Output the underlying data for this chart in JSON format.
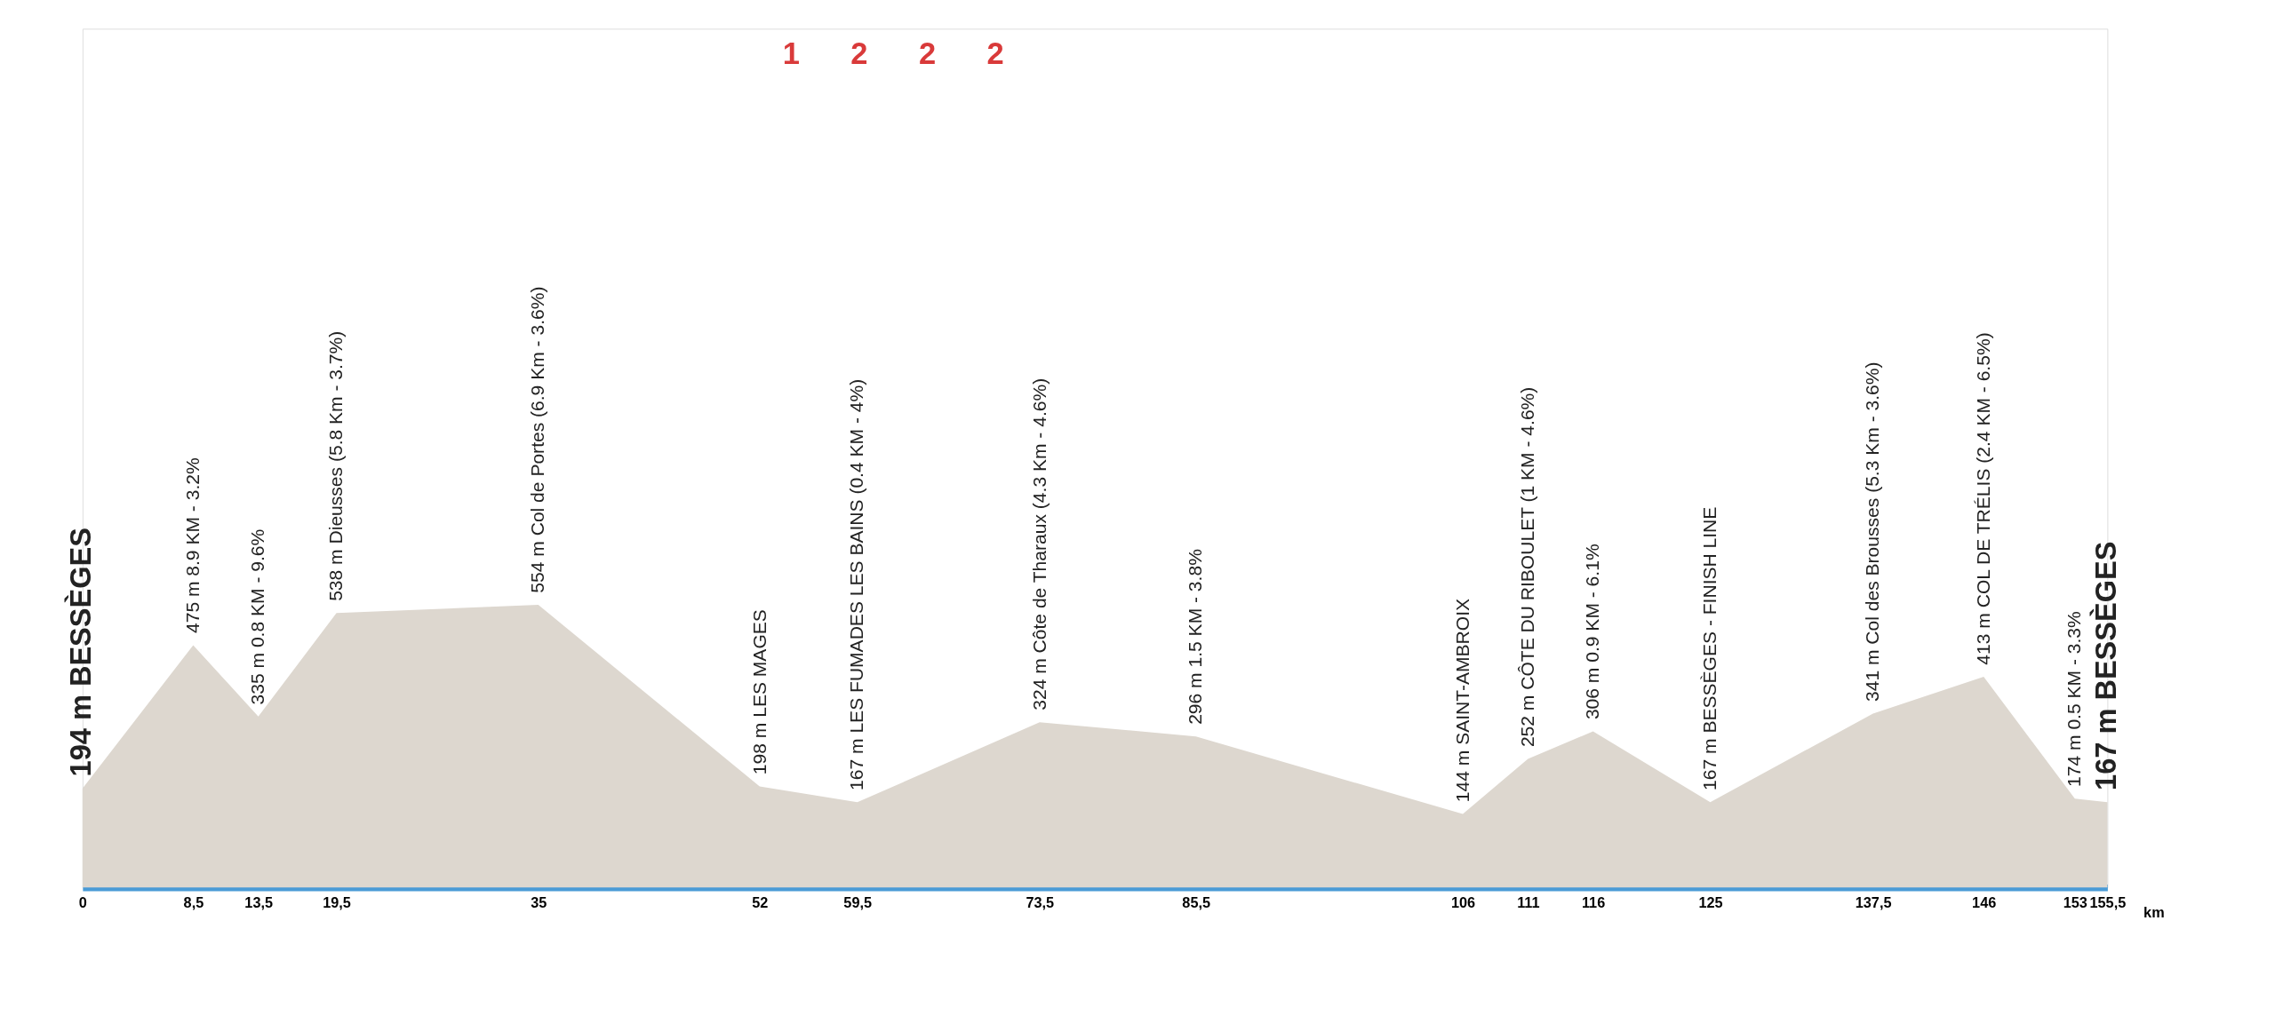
{
  "chart_data": {
    "type": "area",
    "x": [
      0,
      8.5,
      13.5,
      19.5,
      35,
      52,
      59.5,
      73.5,
      85.5,
      106,
      111,
      116,
      125,
      137.5,
      146,
      153,
      155.5
    ],
    "series": [
      {
        "color": "#ddd7cf",
        "values": [
          194,
          475,
          335,
          538,
          554,
          198,
          167,
          324,
          296,
          144,
          252,
          306,
          167,
          341,
          413,
          174,
          167
        ],
        "value_labels": [
          "194 m BESSÈGES",
          "475 m 8.9 KM - 3.2%",
          "335 m 0.8 KM - 9.6%",
          "538 m Dieusses (5.8 Km - 3.7%)",
          "554 m Col de Portes (6.9 Km - 3.6%)",
          "198 m LES MAGES",
          "167 m LES FUMADES LES BAINS (0.4 KM - 4%)",
          "324 m Côte de Tharaux (4.3 Km - 4.6%)",
          "296 m 1.5 KM - 3.8%",
          "144 m SAINT-AMBROIX",
          "252 m CÔTE DU RIBOULET (1 KM - 4.6%)",
          "306 m 0.9 KM - 6.1%",
          "167 m BESSÈGES - FINISH LINE",
          "341 m Col des Brousses (5.3 Km - 3.6%)",
          "413 m COL DE TRÉLIS (2.4 KM - 6.5%)",
          "174 m 0.5 KM - 3.3%",
          "167 m BESSÈGES"
        ]
      }
    ],
    "xlim": [
      0,
      155.5
    ],
    "xticks": [
      0,
      {
        "value": 8.5,
        "label": "8,5"
      },
      {
        "value": 13.5,
        "label": "13,5"
      },
      {
        "value": 19.5,
        "label": "19,5"
      },
      35,
      52,
      {
        "value": 59.5,
        "label": "59,5"
      },
      {
        "value": 73.5,
        "label": "73,5"
      },
      {
        "value": 85.5,
        "label": "85,5"
      },
      106,
      111,
      116,
      125,
      {
        "value": 137.5,
        "label": "137,5"
      },
      146,
      153,
      {
        "value": 155.5,
        "label": "155,5"
      }
    ],
    "xlabel": "km",
    "tick_labels": "x",
    "annotations": [
      "1",
      "2",
      "2",
      "2"
    ]
  }
}
